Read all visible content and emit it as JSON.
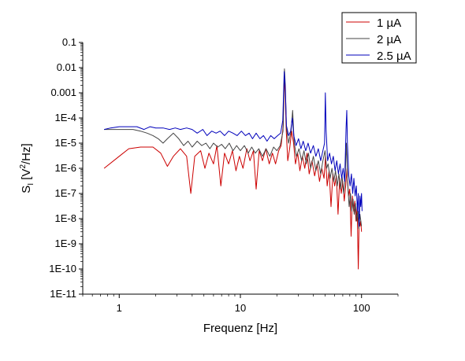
{
  "chart_data": {
    "type": "line",
    "title": "",
    "xlabel": "Frequenz [Hz]",
    "ylabel": {
      "main": "S",
      "sub": "I",
      "rest": " [V",
      "sup": "2",
      "tail": "/Hz]"
    },
    "x_scale": "log",
    "y_scale": "log",
    "xlim": [
      0.5,
      200
    ],
    "ylim": [
      1e-11,
      0.1
    ],
    "x_ticks": [
      {
        "v": 1,
        "label": "1"
      },
      {
        "v": 10,
        "label": "10"
      },
      {
        "v": 100,
        "label": "100"
      }
    ],
    "y_ticks": [
      {
        "v": 0.1,
        "label": "0.1"
      },
      {
        "v": 0.01,
        "label": "0.01"
      },
      {
        "v": 0.001,
        "label": "0.001"
      },
      {
        "v": 0.0001,
        "label": "1E-4"
      },
      {
        "v": 1e-05,
        "label": "1E-5"
      },
      {
        "v": 1e-06,
        "label": "1E-6"
      },
      {
        "v": 1e-07,
        "label": "1E-7"
      },
      {
        "v": 1e-08,
        "label": "1E-8"
      },
      {
        "v": 1e-09,
        "label": "1E-9"
      },
      {
        "v": 1e-10,
        "label": "1E-10"
      },
      {
        "v": 1e-11,
        "label": "1E-11"
      }
    ],
    "grid": false,
    "legend_position": "top-right",
    "series": [
      {
        "name": "1 µA",
        "color": "#cc0000",
        "points": [
          [
            0.75,
            1e-06
          ],
          [
            1.0,
            3e-06
          ],
          [
            1.2,
            6e-06
          ],
          [
            1.5,
            7e-06
          ],
          [
            1.9,
            7e-06
          ],
          [
            2.2,
            4e-06
          ],
          [
            2.5,
            1.2e-06
          ],
          [
            2.8,
            3e-06
          ],
          [
            3.2,
            6e-06
          ],
          [
            3.6,
            3e-06
          ],
          [
            3.9,
            1e-07
          ],
          [
            4.2,
            3e-06
          ],
          [
            4.7,
            5e-06
          ],
          [
            5.1,
            1e-06
          ],
          [
            5.5,
            4e-06
          ],
          [
            6.0,
            1.5e-06
          ],
          [
            6.4,
            8e-06
          ],
          [
            6.9,
            2e-07
          ],
          [
            7.4,
            4e-06
          ],
          [
            8.0,
            1.5e-06
          ],
          [
            8.6,
            5e-06
          ],
          [
            9.2,
            8e-07
          ],
          [
            9.8,
            3e-06
          ],
          [
            10.5,
            1e-06
          ],
          [
            11.3,
            6e-06
          ],
          [
            12.0,
            2e-06
          ],
          [
            12.8,
            5e-06
          ],
          [
            13.5,
            1.5e-07
          ],
          [
            14.3,
            5e-06
          ],
          [
            15.2,
            2e-06
          ],
          [
            16.2,
            6e-06
          ],
          [
            17.3,
            1.5e-06
          ],
          [
            18.4,
            4e-06
          ],
          [
            19.5,
            1.5e-06
          ],
          [
            20.7,
            5e-06
          ],
          [
            21.7,
            8e-06
          ],
          [
            22.6,
            5e-05
          ],
          [
            23.0,
            0.005
          ],
          [
            23.4,
            0.001
          ],
          [
            23.9,
            3e-05
          ],
          [
            24.6,
            2e-06
          ],
          [
            25.5,
            6e-06
          ],
          [
            26.5,
            3e-05
          ],
          [
            27.5,
            1e-05
          ],
          [
            28.5,
            1.5e-06
          ],
          [
            29.7,
            4e-06
          ],
          [
            31.0,
            8e-07
          ],
          [
            32.5,
            3e-06
          ],
          [
            34.0,
            1e-06
          ],
          [
            35.5,
            4e-06
          ],
          [
            37.0,
            6e-07
          ],
          [
            39.0,
            2e-06
          ],
          [
            41.0,
            5e-07
          ],
          [
            43.0,
            1.5e-06
          ],
          [
            45.0,
            3e-07
          ],
          [
            47.0,
            1e-06
          ],
          [
            49.0,
            4e-07
          ],
          [
            50.5,
            3e-06
          ],
          [
            52.0,
            2e-07
          ],
          [
            54.0,
            8e-07
          ],
          [
            56.0,
            3e-08
          ],
          [
            58.0,
            6e-07
          ],
          [
            60.0,
            2e-07
          ],
          [
            62.0,
            5e-07
          ],
          [
            64.0,
            1.5e-08
          ],
          [
            66.0,
            4e-07
          ],
          [
            68.0,
            1e-07
          ],
          [
            70.0,
            3e-07
          ],
          [
            72.0,
            5e-08
          ],
          [
            74.0,
            2e-07
          ],
          [
            76.0,
            1e-06
          ],
          [
            78.0,
            8e-08
          ],
          [
            80.0,
            1.5e-07
          ],
          [
            82.0,
            2e-09
          ],
          [
            84.0,
            8e-08
          ],
          [
            86.0,
            2e-08
          ],
          [
            88.0,
            5e-08
          ],
          [
            90.0,
            8e-09
          ],
          [
            92.0,
            3e-08
          ],
          [
            94.0,
            1e-10
          ],
          [
            95.5,
            1e-08
          ],
          [
            97.0,
            5e-09
          ],
          [
            98.5,
            8e-09
          ],
          [
            100.0,
            3e-09
          ]
        ]
      },
      {
        "name": "2 µA",
        "color": "#444444",
        "points": [
          [
            0.75,
            3.5e-05
          ],
          [
            0.9,
            3.5e-05
          ],
          [
            1.1,
            3.5e-05
          ],
          [
            1.3,
            3.5e-05
          ],
          [
            1.5,
            3e-05
          ],
          [
            1.7,
            2.5e-05
          ],
          [
            1.9,
            2e-05
          ],
          [
            2.1,
            1.5e-05
          ],
          [
            2.3,
            1e-05
          ],
          [
            2.5,
            1.5e-05
          ],
          [
            2.8,
            2.5e-05
          ],
          [
            3.1,
            1.5e-05
          ],
          [
            3.4,
            8e-06
          ],
          [
            3.7,
            1.2e-05
          ],
          [
            4.0,
            7e-06
          ],
          [
            4.4,
            1.2e-05
          ],
          [
            4.8,
            8e-06
          ],
          [
            5.2,
            1e-05
          ],
          [
            5.6,
            6e-06
          ],
          [
            6.0,
            1e-05
          ],
          [
            6.5,
            7e-06
          ],
          [
            7.0,
            9e-06
          ],
          [
            7.5,
            6e-06
          ],
          [
            8.1,
            1e-05
          ],
          [
            8.7,
            5e-06
          ],
          [
            9.3,
            8e-06
          ],
          [
            10.0,
            5e-06
          ],
          [
            10.8,
            8e-06
          ],
          [
            11.6,
            4e-06
          ],
          [
            12.4,
            7e-06
          ],
          [
            13.3,
            4e-06
          ],
          [
            14.2,
            6e-06
          ],
          [
            15.2,
            3e-06
          ],
          [
            16.3,
            6e-06
          ],
          [
            17.5,
            3e-06
          ],
          [
            18.8,
            7e-06
          ],
          [
            20.0,
            5e-06
          ],
          [
            21.3,
            8e-06
          ],
          [
            22.5,
            3e-05
          ],
          [
            23.1,
            0.009
          ],
          [
            23.5,
            0.002
          ],
          [
            24.0,
            4e-05
          ],
          [
            25.0,
            1e-05
          ],
          [
            26.2,
            3e-05
          ],
          [
            27.0,
            0.0002
          ],
          [
            27.8,
            1e-05
          ],
          [
            29.0,
            3e-06
          ],
          [
            30.5,
            6e-06
          ],
          [
            32.0,
            2e-06
          ],
          [
            33.5,
            5e-06
          ],
          [
            35.0,
            1.5e-06
          ],
          [
            36.5,
            4e-06
          ],
          [
            38.0,
            1e-06
          ],
          [
            40.0,
            3e-06
          ],
          [
            42.0,
            8e-07
          ],
          [
            44.0,
            2e-06
          ],
          [
            46.0,
            6e-07
          ],
          [
            48.0,
            2e-06
          ],
          [
            50.0,
            5e-06
          ],
          [
            51.5,
            1e-06
          ],
          [
            53.0,
            1.5e-06
          ],
          [
            55.0,
            4e-07
          ],
          [
            57.0,
            1e-06
          ],
          [
            59.0,
            3e-07
          ],
          [
            61.0,
            8e-07
          ],
          [
            63.0,
            2e-07
          ],
          [
            65.0,
            6e-07
          ],
          [
            67.0,
            1.5e-07
          ],
          [
            69.0,
            5e-07
          ],
          [
            71.0,
            1e-07
          ],
          [
            73.0,
            3e-07
          ],
          [
            75.0,
            1e-05
          ],
          [
            77.0,
            2e-07
          ],
          [
            79.0,
            3e-08
          ],
          [
            81.0,
            1e-07
          ],
          [
            83.0,
            2e-08
          ],
          [
            85.0,
            6e-08
          ],
          [
            87.0,
            1.5e-08
          ],
          [
            89.0,
            4e-08
          ],
          [
            91.0,
            8e-09
          ],
          [
            93.0,
            2e-08
          ],
          [
            95.0,
            4e-09
          ],
          [
            97.0,
            1.5e-08
          ],
          [
            100.0,
            5e-09
          ]
        ]
      },
      {
        "name": "2.5 µA",
        "color": "#0000bb",
        "points": [
          [
            0.75,
            3.5e-05
          ],
          [
            0.85,
            4e-05
          ],
          [
            1.0,
            4.5e-05
          ],
          [
            1.2,
            4.5e-05
          ],
          [
            1.4,
            4.5e-05
          ],
          [
            1.6,
            3.5e-05
          ],
          [
            1.8,
            4.5e-05
          ],
          [
            2.0,
            4e-05
          ],
          [
            2.3,
            4e-05
          ],
          [
            2.6,
            3.5e-05
          ],
          [
            2.9,
            4e-05
          ],
          [
            3.2,
            3.5e-05
          ],
          [
            3.6,
            4e-05
          ],
          [
            4.0,
            3.5e-05
          ],
          [
            4.4,
            2.5e-05
          ],
          [
            4.9,
            3.5e-05
          ],
          [
            5.3,
            2e-05
          ],
          [
            5.8,
            3e-05
          ],
          [
            6.3,
            2.5e-05
          ],
          [
            6.8,
            3e-05
          ],
          [
            7.4,
            2e-05
          ],
          [
            8.0,
            3e-05
          ],
          [
            8.7,
            2.5e-05
          ],
          [
            9.4,
            2e-05
          ],
          [
            10.2,
            3e-05
          ],
          [
            11.0,
            2e-05
          ],
          [
            11.8,
            2.5e-05
          ],
          [
            12.6,
            1.5e-05
          ],
          [
            13.5,
            2.5e-05
          ],
          [
            14.5,
            1.5e-05
          ],
          [
            15.5,
            2e-05
          ],
          [
            16.6,
            1.2e-05
          ],
          [
            17.8,
            2e-05
          ],
          [
            19.0,
            1.5e-05
          ],
          [
            20.3,
            2e-05
          ],
          [
            21.5,
            2.5e-05
          ],
          [
            22.4,
            8e-05
          ],
          [
            23.0,
            0.007
          ],
          [
            23.5,
            0.0015
          ],
          [
            24.0,
            5e-05
          ],
          [
            25.0,
            2e-05
          ],
          [
            26.0,
            3e-05
          ],
          [
            26.8,
            0.0001
          ],
          [
            27.6,
            2e-05
          ],
          [
            28.8,
            8e-06
          ],
          [
            30.2,
            1.5e-05
          ],
          [
            31.6,
            6e-06
          ],
          [
            33.0,
            1.2e-05
          ],
          [
            34.6,
            5e-06
          ],
          [
            36.2,
            1e-05
          ],
          [
            38.0,
            4e-06
          ],
          [
            40.0,
            8e-06
          ],
          [
            42.0,
            3e-06
          ],
          [
            44.0,
            6e-06
          ],
          [
            46.0,
            2e-06
          ],
          [
            48.0,
            5e-06
          ],
          [
            49.5,
            1e-05
          ],
          [
            50.3,
            0.001
          ],
          [
            51.0,
            3e-05
          ],
          [
            52.5,
            2e-06
          ],
          [
            54.5,
            4e-06
          ],
          [
            56.5,
            1.5e-06
          ],
          [
            58.5,
            3e-06
          ],
          [
            60.5,
            8e-07
          ],
          [
            62.5,
            2e-06
          ],
          [
            64.5,
            6e-07
          ],
          [
            66.5,
            1.5e-06
          ],
          [
            68.5,
            4e-07
          ],
          [
            70.5,
            1e-06
          ],
          [
            72.5,
            3e-07
          ],
          [
            74.5,
            4e-05
          ],
          [
            75.5,
            0.0002
          ],
          [
            76.5,
            1e-05
          ],
          [
            78.5,
            5e-07
          ],
          [
            80.5,
            2e-07
          ],
          [
            82.5,
            6e-07
          ],
          [
            84.5,
            1e-07
          ],
          [
            86.5,
            4e-07
          ],
          [
            88.5,
            8e-08
          ],
          [
            90.5,
            2e-07
          ],
          [
            92.5,
            2e-08
          ],
          [
            94.0,
            1e-07
          ],
          [
            95.5,
            5e-09
          ],
          [
            97.0,
            8e-08
          ],
          [
            98.5,
            3e-08
          ],
          [
            100.0,
            1e-07
          ],
          [
            101.0,
            2e-08
          ]
        ]
      }
    ]
  },
  "legend": {
    "items": [
      {
        "label": "1 µA",
        "color": "#cc0000"
      },
      {
        "label": "2 µA",
        "color": "#444444"
      },
      {
        "label": "2.5 µA",
        "color": "#0000bb"
      }
    ]
  }
}
